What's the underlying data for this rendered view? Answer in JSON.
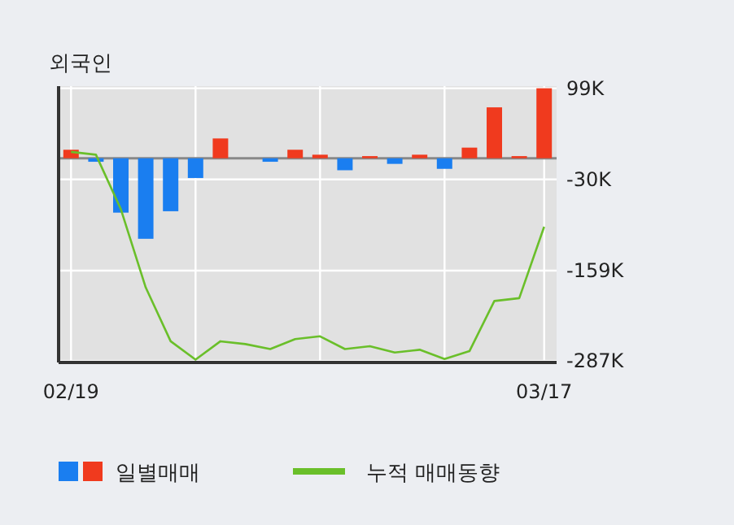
{
  "chart_data": {
    "type": "bar",
    "title": "외국인",
    "categories": [
      "02/19",
      null,
      null,
      null,
      null,
      null,
      null,
      null,
      null,
      null,
      null,
      null,
      null,
      null,
      null,
      null,
      null,
      null,
      null,
      "03/17"
    ],
    "series": [
      {
        "name": "일별매매",
        "colors": [
          "#f03a1e",
          "#1a7ef0",
          "#1a7ef0",
          "#1a7ef0",
          "#1a7ef0",
          "#1a7ef0",
          "#f03a1e",
          "#f03a1e",
          "#1a7ef0",
          "#f03a1e",
          "#f03a1e",
          "#1a7ef0",
          "#f03a1e",
          "#1a7ef0",
          "#f03a1e",
          "#1a7ef0",
          "#f03a1e",
          "#f03a1e",
          "#f03a1e",
          "#f03a1e"
        ],
        "values": [
          12,
          -5,
          -77,
          -114,
          -75,
          -28,
          28,
          null,
          -5,
          12,
          5,
          -17,
          3,
          -8,
          5,
          -15,
          15,
          72,
          3,
          99
        ]
      },
      {
        "name": "누적 매매동향",
        "type": "line",
        "color": "#6abf2a",
        "values": [
          9,
          5,
          -72,
          -183,
          -259,
          -285,
          -259,
          -263,
          -270,
          -256,
          -252,
          -270,
          -266,
          -275,
          -271,
          -284,
          -273,
          -202,
          -198,
          -97
        ]
      }
    ],
    "ylim": [
      -289,
      102
    ],
    "yticks": [
      {
        "value": 99,
        "label": "99K"
      },
      {
        "value": -30,
        "label": "-30K"
      },
      {
        "value": -159,
        "label": "-159K"
      },
      {
        "value": -287,
        "label": "-287K"
      }
    ],
    "grid": true,
    "legend": "bottom"
  }
}
